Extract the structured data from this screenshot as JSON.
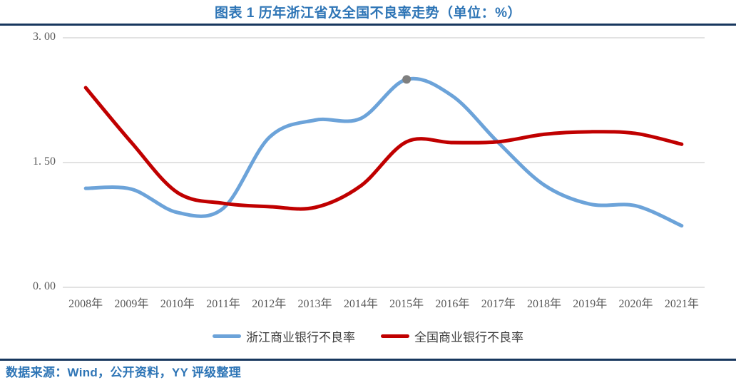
{
  "title": "图表 1 历年浙江省及全国不良率走势（单位：%）",
  "footer": {
    "source_text": "数据来源：Wind，公开资料，YY 评级整理"
  },
  "colors": {
    "heading_blue": "#2E75B6",
    "rule_navy": "#17375E",
    "grid_gray": "#D9D9D9",
    "axis_text": "#595959",
    "legend_text": "#404040"
  },
  "chart_data": {
    "type": "line",
    "title": "图表 1 历年浙江省及全国不良率走势",
    "unit": "%",
    "smooth": true,
    "grid": "horizontal",
    "legend_position": "bottom",
    "ylim": [
      0,
      3
    ],
    "yticks": [
      {
        "label": "0. 00",
        "value": 0
      },
      {
        "label": "1. 50",
        "value": 1.5
      },
      {
        "label": "3. 00",
        "value": 3
      }
    ],
    "categories": [
      "2008年",
      "2009年",
      "2010年",
      "2011年",
      "2012年",
      "2013年",
      "2014年",
      "2015年",
      "2016年",
      "2017年",
      "2018年",
      "2019年",
      "2020年",
      "2021年"
    ],
    "series": [
      {
        "name": "浙江商业银行不良率",
        "color": "#6CA3D9",
        "values": [
          1.19,
          1.18,
          0.9,
          0.95,
          1.8,
          2.01,
          2.03,
          2.5,
          2.3,
          1.74,
          1.23,
          1.0,
          0.98,
          0.74
        ],
        "marker": {
          "category": "2015年",
          "index": 7,
          "value": 2.5,
          "color": "#7F7F7F"
        }
      },
      {
        "name": "全国商业银行不良率",
        "color": "#C00000",
        "values": [
          2.4,
          1.74,
          1.14,
          1.01,
          0.97,
          0.96,
          1.22,
          1.75,
          1.74,
          1.75,
          1.84,
          1.87,
          1.85,
          1.72
        ]
      }
    ]
  }
}
